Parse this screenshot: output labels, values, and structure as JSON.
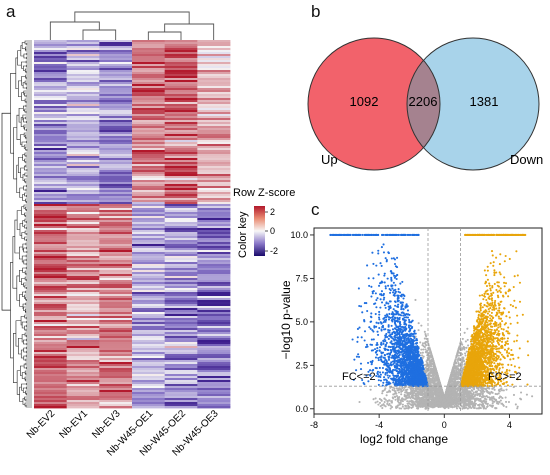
{
  "figure": {
    "panel_a": {
      "letter": "a",
      "samples": [
        "Nb-EV2",
        "Nb-EV1",
        "Nb-EV3",
        "Nb-W45-OE1",
        "Nb-W45-OE2",
        "Nb-W45-OE3"
      ],
      "color_key": {
        "title": "Row Z-score",
        "axis_label": "Color key",
        "ticks": [
          "2",
          "0",
          "-2"
        ],
        "colors": {
          "high": "#b2182b",
          "mid": "#f7f7f7",
          "low": "#1a0a6b"
        }
      }
    },
    "panel_b": {
      "letter": "b",
      "venn": {
        "left": {
          "label": "Up",
          "only_count": "1092",
          "color": "#f2626b"
        },
        "right": {
          "label": "Down",
          "only_count": "1381",
          "color": "#a8d3ea"
        },
        "intersection": {
          "count": "2206",
          "color": "#a5828f"
        }
      }
    },
    "panel_c": {
      "letter": "c",
      "xlabel": "log2 fold change",
      "ylabel": "−log10 p-value",
      "xticks": [
        "-8",
        "-4",
        "0",
        "4"
      ],
      "yticks": [
        "0.0",
        "2.5",
        "5.0",
        "7.5",
        "10.0"
      ],
      "annotations": {
        "left": "FC<=2",
        "right": "FC>=2"
      },
      "colors": {
        "down": "#1f6fe0",
        "up": "#e8a50b",
        "ns": "#b3b3b3"
      }
    }
  },
  "chart_data": [
    {
      "type": "heatmap",
      "title": "",
      "columns": [
        "Nb-EV2",
        "Nb-EV1",
        "Nb-EV3",
        "Nb-W45-OE1",
        "Nb-W45-OE2",
        "Nb-W45-OE3"
      ],
      "value_scale": {
        "label": "Row Z-score",
        "min": -2,
        "max": 2
      },
      "row_groups": [
        {
          "name": "upper block",
          "pattern": [
            -0.9,
            -0.6,
            -1.0,
            1.1,
            1.3,
            0.6
          ]
        },
        {
          "name": "lower block",
          "pattern": [
            1.2,
            0.8,
            1.0,
            -0.7,
            -1.0,
            -1.2
          ]
        }
      ],
      "dendrogram": "rows and columns clustered"
    },
    {
      "type": "volcano",
      "xlabel": "log2 fold change",
      "ylabel": "−log10 p-value",
      "xlim": [
        -8,
        6
      ],
      "ylim": [
        -0.3,
        10.4
      ],
      "thresholds": {
        "fc_log2": [
          -1,
          1
        ],
        "p_line_y": 1.3
      },
      "series": [
        {
          "name": "FC<=2",
          "color": "#1f6fe0",
          "x_range": [
            -7.5,
            -1
          ],
          "y_range": [
            1.3,
            10
          ]
        },
        {
          "name": "FC>=2",
          "color": "#e8a50b",
          "x_range": [
            1,
            5.2
          ],
          "y_range": [
            1.3,
            10
          ]
        },
        {
          "name": "ns",
          "color": "#b3b3b3",
          "x_range": [
            -3,
            3
          ],
          "y_range": [
            0,
            8
          ]
        }
      ]
    }
  ]
}
